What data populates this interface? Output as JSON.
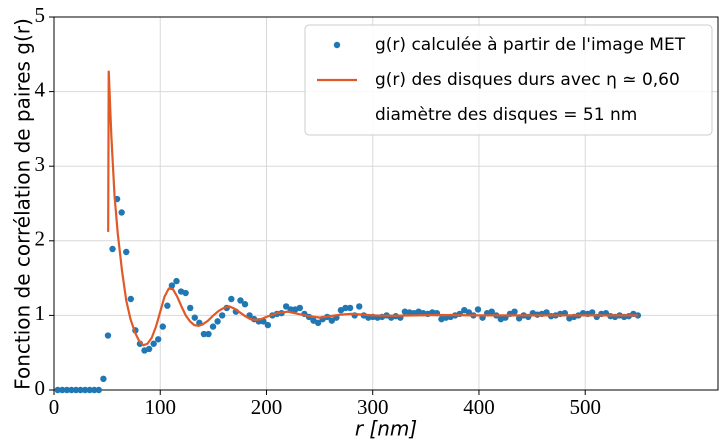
{
  "chart_data": {
    "type": "scatter",
    "xlabel": "r [nm]",
    "ylabel": "Fonction de corrélation de paires g(r)",
    "annotation": "diamètre des disques = 51 nm",
    "xlim": [
      0,
      625
    ],
    "ylim": [
      0,
      5
    ],
    "xticks": [
      0,
      100,
      200,
      300,
      400,
      500
    ],
    "yticks": [
      0,
      1,
      2,
      3,
      4,
      5
    ],
    "grid": true,
    "legend": "upper right",
    "series": [
      {
        "name": "g(r) calculée à partir de l'image MET",
        "type": "scatter",
        "color": "#1f77b4",
        "x": [
          3.5,
          7.8,
          12.1,
          16.4,
          20.7,
          25,
          29.3,
          33.6,
          37.9,
          42.2,
          46.5,
          50.8,
          55.1,
          59.4,
          63.7,
          68,
          72.3,
          76.6,
          80.9,
          85.2,
          89.5,
          93.8,
          98.1,
          102.4,
          106.7,
          111,
          115.3,
          119.6,
          123.9,
          128.2,
          132.5,
          136.8,
          141.1,
          145.4,
          149.7,
          154,
          158.3,
          162.6,
          166.9,
          171.2,
          175.5,
          179.8,
          184.1,
          188.4,
          192.7,
          197,
          201.3,
          205.6,
          209.9,
          214.2,
          218.5,
          222.8,
          227.1,
          231.4,
          235.7,
          240,
          244.3,
          248.6,
          252.9,
          257.2,
          261.5,
          265.8,
          270.1,
          274.4,
          278.7,
          283,
          287.3,
          291.6,
          295.9,
          300.2,
          304.5,
          308.8,
          313.1,
          317.4,
          321.7,
          326,
          330.3,
          334.6,
          338.9,
          343.2,
          347.5,
          351.8,
          356.1,
          360.4,
          364.7,
          369,
          373.3,
          377.6,
          381.9,
          386.2,
          390.5,
          394.8,
          399.1,
          403.4,
          407.7,
          412,
          416.3,
          420.6,
          424.9,
          429.2,
          433.5,
          437.8,
          442.1,
          446.4,
          450.7,
          455,
          459.3,
          463.6,
          467.9,
          472.2,
          476.5,
          480.8,
          485.1,
          489.4,
          493.7,
          498,
          502.3,
          506.6,
          510.9,
          515.2,
          519.5,
          523.8,
          528.1,
          532.4,
          536.7,
          541,
          545.3,
          549.6
        ],
        "values": [
          0,
          0,
          0,
          0,
          0,
          0,
          0,
          0,
          0,
          0,
          0.15,
          0.73,
          1.89,
          2.56,
          2.38,
          1.85,
          1.22,
          0.8,
          0.62,
          0.53,
          0.55,
          0.62,
          0.68,
          0.85,
          1.13,
          1.4,
          1.46,
          1.32,
          1.3,
          1.1,
          0.97,
          0.9,
          0.75,
          0.75,
          0.85,
          0.92,
          1.0,
          1.1,
          1.22,
          1.05,
          1.2,
          1.15,
          1.0,
          0.95,
          0.92,
          0.92,
          0.87,
          1.0,
          1.02,
          1.03,
          1.12,
          1.08,
          1.08,
          1.1,
          1.02,
          0.98,
          0.93,
          0.9,
          0.95,
          0.98,
          0.93,
          0.97,
          1.07,
          1.1,
          1.1,
          1.0,
          1.12,
          1.0,
          0.97,
          0.98,
          0.97,
          0.98,
          1.0,
          0.97,
          0.99,
          0.97,
          1.05,
          1.04,
          1.03,
          1.05,
          1.03,
          1.02,
          1.04,
          1.03,
          0.95,
          0.97,
          0.98,
          1.0,
          1.02,
          1.07,
          1.04,
          1.0,
          1.08,
          0.97,
          1.03,
          1.05,
          1.0,
          0.95,
          0.97,
          1.02,
          1.05,
          0.96,
          1.0,
          0.98,
          1.03,
          1.01,
          1.02,
          1.04,
          0.99,
          1.0,
          1.02,
          1.03,
          0.96,
          0.98,
          1.0,
          1.03,
          1.02,
          1.04,
          0.98,
          1.02,
          1.03,
          0.99,
          0.98,
          1.0,
          0.98,
          0.99,
          1.02,
          1.0
        ]
      },
      {
        "name": "g(r) des disques durs avec η ≃ 0,60",
        "type": "line",
        "color": "#e05a27",
        "x": [
          51,
          51.5,
          54,
          57,
          60,
          64,
          68,
          72,
          76,
          80,
          84,
          88,
          92,
          96,
          100,
          104,
          108,
          112,
          116,
          120,
          124,
          128,
          132,
          136,
          140,
          145,
          150,
          155,
          160,
          165,
          170,
          175,
          180,
          185,
          190,
          195,
          200,
          210,
          220,
          230,
          240,
          250,
          260,
          270,
          280,
          300,
          320,
          340,
          360,
          400,
          450,
          500,
          550
        ],
        "values": [
          2.12,
          4.28,
          3.4,
          2.6,
          2.1,
          1.6,
          1.2,
          0.95,
          0.78,
          0.66,
          0.6,
          0.62,
          0.7,
          0.85,
          1.05,
          1.25,
          1.36,
          1.35,
          1.25,
          1.12,
          1.0,
          0.92,
          0.87,
          0.86,
          0.88,
          0.93,
          1.0,
          1.06,
          1.1,
          1.12,
          1.09,
          1.04,
          0.99,
          0.95,
          0.94,
          0.95,
          0.98,
          1.03,
          1.05,
          1.02,
          0.99,
          0.97,
          0.99,
          1.01,
          1.02,
          1.0,
          0.995,
          1.0,
          1.005,
          1.0,
          1.0,
          1.0,
          1.0
        ]
      }
    ]
  }
}
